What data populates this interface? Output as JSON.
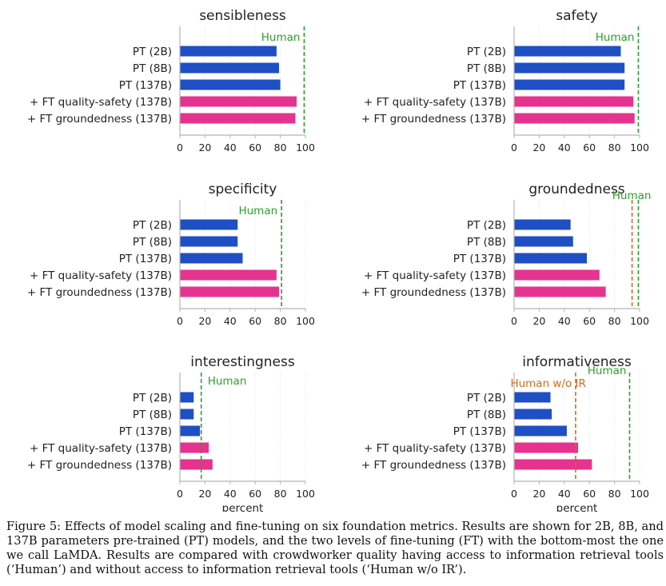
{
  "chart_data": [
    {
      "type": "bar",
      "orientation": "horizontal",
      "title": "sensibleness",
      "categories": [
        "PT (2B)",
        "PT (8B)",
        "PT (137B)",
        "+ FT quality-safety (137B)",
        "+ FT groundedness (137B)"
      ],
      "values": [
        77,
        79,
        80,
        93,
        92
      ],
      "xlim": [
        0,
        100
      ],
      "xticks": [
        "0",
        "20",
        "40",
        "60",
        "80",
        "100"
      ],
      "xlabel": "",
      "refs": [
        {
          "label": "Human",
          "value": 99,
          "color": "#2ca02c"
        }
      ]
    },
    {
      "type": "bar",
      "orientation": "horizontal",
      "title": "safety",
      "categories": [
        "PT (2B)",
        "PT (8B)",
        "PT (137B)",
        "+ FT quality-safety (137B)",
        "+ FT groundedness (137B)"
      ],
      "values": [
        85,
        88,
        88,
        95,
        96
      ],
      "xlim": [
        0,
        100
      ],
      "xticks": [
        "0",
        "20",
        "40",
        "60",
        "80",
        "100"
      ],
      "xlabel": "",
      "refs": [
        {
          "label": "Human",
          "value": 99,
          "color": "#2ca02c"
        }
      ]
    },
    {
      "type": "bar",
      "orientation": "horizontal",
      "title": "specificity",
      "categories": [
        "PT (2B)",
        "PT (8B)",
        "PT (137B)",
        "+ FT quality-safety (137B)",
        "+ FT groundedness (137B)"
      ],
      "values": [
        46,
        46,
        50,
        77,
        79
      ],
      "xlim": [
        0,
        100
      ],
      "xticks": [
        "0",
        "20",
        "40",
        "60",
        "80",
        "100"
      ],
      "xlabel": "",
      "refs": [
        {
          "label": "Human",
          "value": 81,
          "color": "#2ca02c"
        }
      ]
    },
    {
      "type": "bar",
      "orientation": "horizontal",
      "title": "groundedness",
      "categories": [
        "PT (2B)",
        "PT (8B)",
        "PT (137B)",
        "+ FT quality-safety (137B)",
        "+ FT groundedness (137B)"
      ],
      "values": [
        45,
        47,
        58,
        68,
        73
      ],
      "xlim": [
        0,
        100
      ],
      "xticks": [
        "0",
        "20",
        "40",
        "60",
        "80",
        "100"
      ],
      "xlabel": "",
      "refs": [
        {
          "label": "",
          "value": 94,
          "color": "#d2691e"
        },
        {
          "label": "Human",
          "value": 99,
          "color": "#2ca02c"
        }
      ]
    },
    {
      "type": "bar",
      "orientation": "horizontal",
      "title": "interestingness",
      "categories": [
        "PT (2B)",
        "PT (8B)",
        "PT (137B)",
        "+ FT quality-safety (137B)",
        "+ FT groundedness (137B)"
      ],
      "values": [
        11,
        11,
        16,
        23,
        26
      ],
      "xlim": [
        0,
        100
      ],
      "xticks": [
        "0",
        "20",
        "40",
        "60",
        "80",
        "100"
      ],
      "xlabel": "percent",
      "refs": [
        {
          "label": "Human",
          "value": 17,
          "color": "#2ca02c"
        }
      ]
    },
    {
      "type": "bar",
      "orientation": "horizontal",
      "title": "informativeness",
      "categories": [
        "PT (2B)",
        "PT (8B)",
        "PT (137B)",
        "+ FT quality-safety (137B)",
        "+ FT groundedness (137B)"
      ],
      "values": [
        29,
        30,
        42,
        51,
        62
      ],
      "xlim": [
        0,
        100
      ],
      "xticks": [
        "0",
        "20",
        "40",
        "60",
        "80",
        "100"
      ],
      "xlabel": "percent",
      "refs": [
        {
          "label": "Human w/o IR",
          "value": 49,
          "color": "#d2691e"
        },
        {
          "label": "Human",
          "value": 92,
          "color": "#2ca02c"
        }
      ]
    }
  ],
  "colors": {
    "pt": "#1f4fc4",
    "ft": "#e6338f",
    "human": "#2ca02c",
    "human_wo_ir": "#d2691e"
  },
  "caption": "Figure 5: Effects of model scaling and fine-tuning on six foundation metrics. Results are shown for 2B, 8B, and 137B parameters pre-trained (PT) models, and the two levels of fine-tuning (FT) with the bottom-most the one we call LaMDA. Results are compared with crowdworker quality having access to information retrieval tools (‘Human’) and without access to information retrieval tools (‘Human w/o IR’)."
}
